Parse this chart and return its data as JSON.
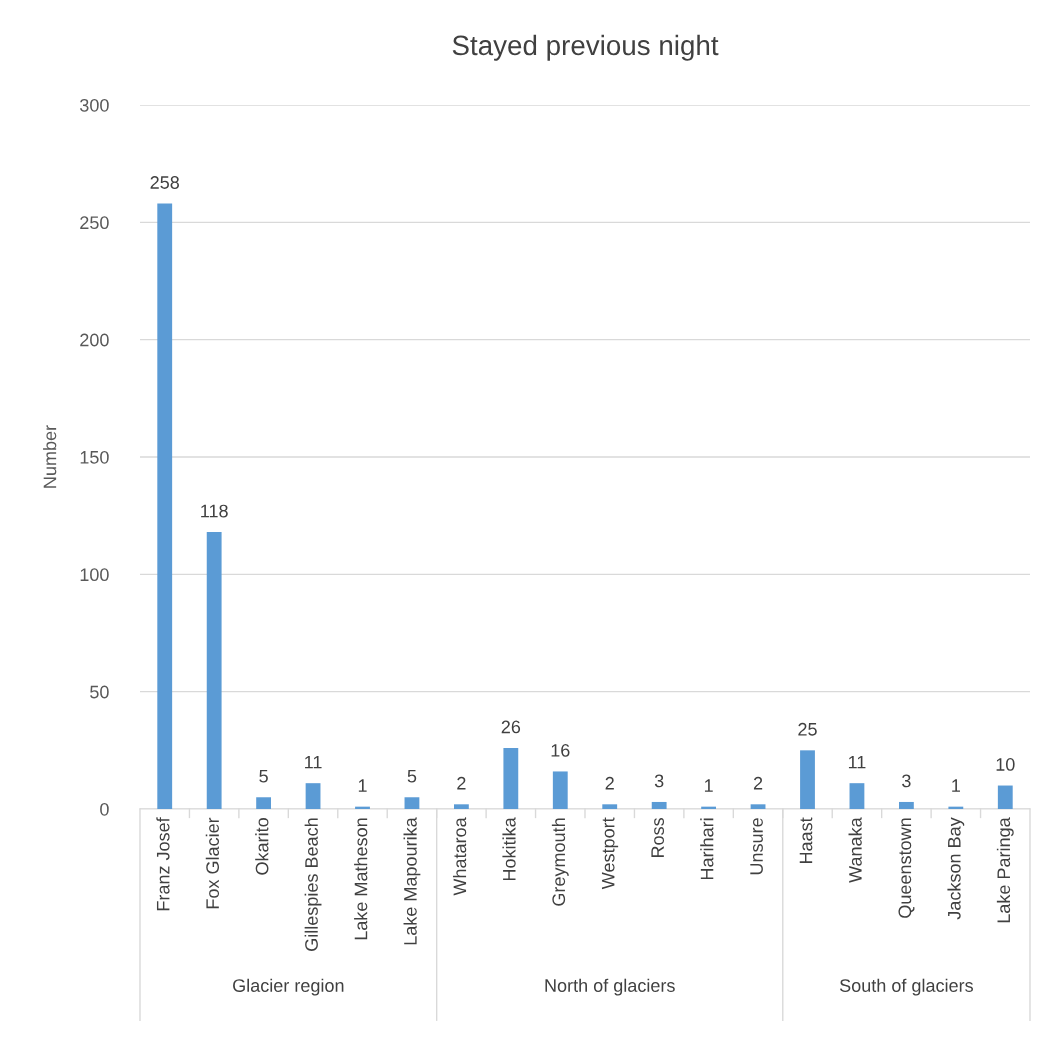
{
  "chart_data": {
    "type": "bar",
    "title": "Stayed previous night",
    "ylabel": "Number",
    "categories": [
      "Franz Josef",
      "Fox Glacier",
      "Okarito",
      "Gillespies Beach",
      "Lake Matheson",
      "Lake Mapourika",
      "Whataroa",
      "Hokitika",
      "Greymouth",
      "Westport",
      "Ross",
      "Harihari",
      "Unsure",
      "Haast",
      "Wanaka",
      "Queenstown",
      "Jackson Bay",
      "Lake Paringa"
    ],
    "values": [
      258,
      118,
      5,
      11,
      1,
      5,
      2,
      26,
      16,
      2,
      3,
      1,
      2,
      25,
      11,
      3,
      1,
      10
    ],
    "color": "#5b9bd5",
    "ylim": [
      0,
      300
    ],
    "yticks": [
      0,
      50,
      100,
      150,
      200,
      250,
      300
    ],
    "grid": "y",
    "data_labels": true,
    "annotations": [
      "Glacier region",
      "North of glaciers",
      "South of glaciers"
    ]
  }
}
